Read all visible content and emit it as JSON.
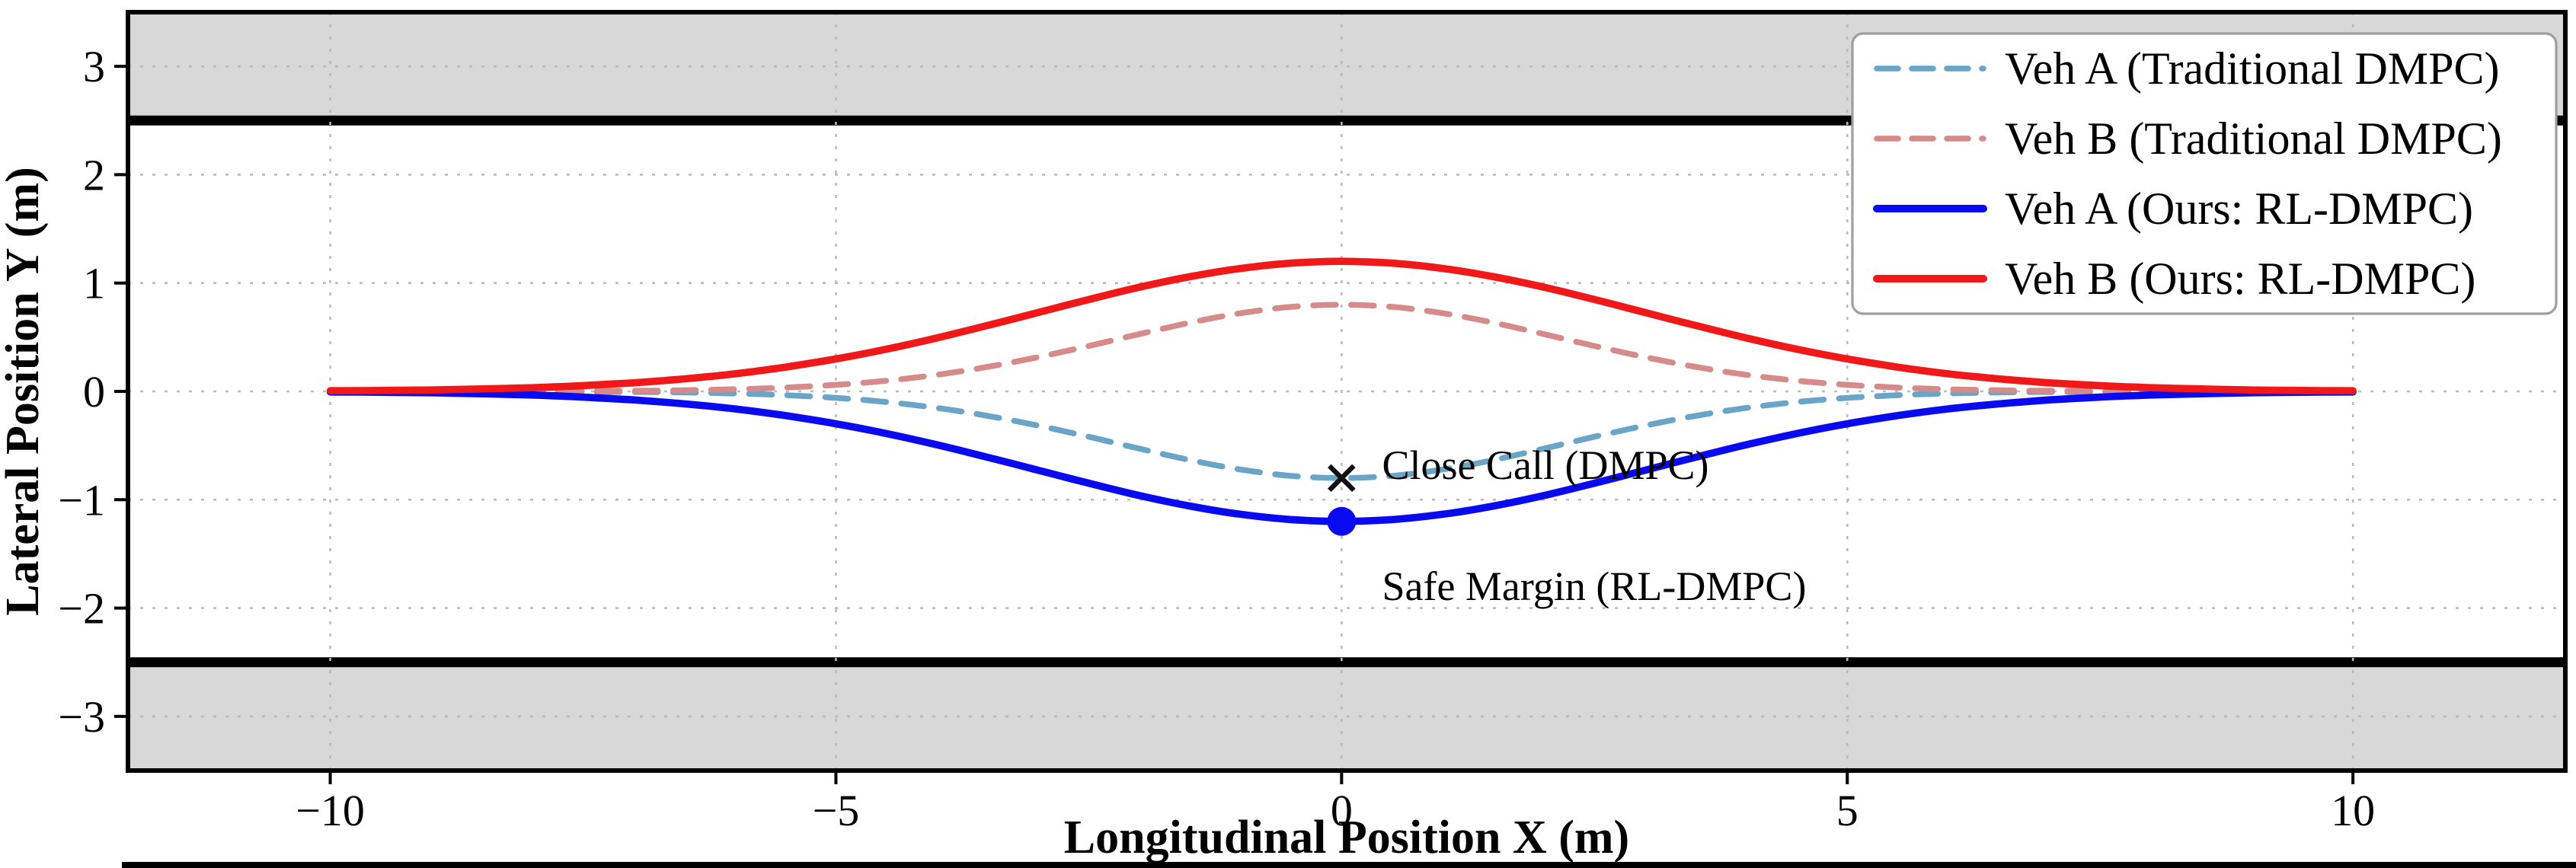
{
  "figure": {
    "background": "#ffffff"
  },
  "chart_data": {
    "type": "line",
    "title": "",
    "xlabel": "Longitudinal Position X (m)",
    "ylabel": "Lateral Position Y (m)",
    "xlim": [
      -12,
      12.1
    ],
    "ylim": [
      -3.5,
      3.5
    ],
    "xticks": [
      -10,
      -5,
      0,
      5,
      10
    ],
    "yticks": [
      -3,
      -2,
      -1,
      0,
      1,
      2,
      3
    ],
    "grid": {
      "style": "dotted",
      "color": "#bbbbbb"
    },
    "legend_position": "upper right",
    "road": {
      "lane_half_width": 2.5,
      "band_color": "#d8d8d8",
      "edge_color": "#000000"
    },
    "x": [
      -10,
      -9.5,
      -9,
      -8.5,
      -8,
      -7.5,
      -7,
      -6.5,
      -6,
      -5.5,
      -5,
      -4.5,
      -4,
      -3.5,
      -3,
      -2.5,
      -2,
      -1.5,
      -1,
      -0.5,
      0,
      0.5,
      1,
      1.5,
      2,
      2.5,
      3,
      3.5,
      4,
      4.5,
      5,
      5.5,
      6,
      6.5,
      7,
      7.5,
      8,
      8.5,
      9,
      9.5,
      10
    ],
    "series": [
      {
        "name": "Veh A (Traditional DMPC)",
        "style": "dashed",
        "color": "#6aa5c8",
        "values": [
          0,
          0,
          0,
          -0.001,
          -0.001,
          -0.003,
          -0.005,
          -0.01,
          -0.019,
          -0.035,
          -0.06,
          -0.099,
          -0.153,
          -0.226,
          -0.316,
          -0.419,
          -0.529,
          -0.634,
          -0.721,
          -0.78,
          -0.8,
          -0.78,
          -0.721,
          -0.634,
          -0.529,
          -0.419,
          -0.316,
          -0.226,
          -0.153,
          -0.099,
          -0.06,
          -0.035,
          -0.019,
          -0.01,
          -0.005,
          -0.003,
          -0.001,
          -0.001,
          0,
          0,
          0
        ]
      },
      {
        "name": "Veh B (Traditional DMPC)",
        "style": "dashed",
        "color": "#d68a8a",
        "values": [
          0,
          0,
          0,
          0.001,
          0.001,
          0.003,
          0.005,
          0.01,
          0.019,
          0.035,
          0.06,
          0.099,
          0.153,
          0.226,
          0.316,
          0.419,
          0.529,
          0.634,
          0.721,
          0.78,
          0.8,
          0.78,
          0.721,
          0.634,
          0.529,
          0.419,
          0.316,
          0.226,
          0.153,
          0.099,
          0.06,
          0.035,
          0.019,
          0.01,
          0.005,
          0.003,
          0.001,
          0.001,
          0,
          0,
          0
        ]
      },
      {
        "name": "Veh A (Ours: RL-DMPC)",
        "style": "solid",
        "color": "#0a0af0",
        "values": [
          -0.005,
          -0.008,
          -0.013,
          -0.022,
          -0.034,
          -0.053,
          -0.079,
          -0.115,
          -0.162,
          -0.224,
          -0.299,
          -0.39,
          -0.493,
          -0.608,
          -0.728,
          -0.848,
          -0.961,
          -1.059,
          -1.135,
          -1.183,
          -1.2,
          -1.183,
          -1.135,
          -1.059,
          -0.961,
          -0.848,
          -0.728,
          -0.608,
          -0.493,
          -0.39,
          -0.299,
          -0.224,
          -0.162,
          -0.115,
          -0.079,
          -0.053,
          -0.034,
          -0.022,
          -0.013,
          -0.008,
          -0.005
        ]
      },
      {
        "name": "Veh B (Ours: RL-DMPC)",
        "style": "solid",
        "color": "#f01818",
        "values": [
          0.005,
          0.008,
          0.013,
          0.022,
          0.034,
          0.053,
          0.079,
          0.115,
          0.162,
          0.224,
          0.299,
          0.39,
          0.493,
          0.608,
          0.728,
          0.848,
          0.961,
          1.059,
          1.135,
          1.183,
          1.2,
          1.183,
          1.135,
          1.059,
          0.961,
          0.848,
          0.728,
          0.608,
          0.493,
          0.39,
          0.299,
          0.224,
          0.162,
          0.115,
          0.079,
          0.053,
          0.034,
          0.022,
          0.013,
          0.008,
          0.005
        ]
      }
    ],
    "annotations": [
      {
        "text": "Close Call (DMPC)",
        "marker": "x",
        "marker_color": "#111111",
        "text_color": "#111111",
        "x": 0,
        "y": -0.8,
        "label_x": 0.4,
        "label_y": -0.68
      },
      {
        "text": "Safe Margin (RL-DMPC)",
        "marker": "circle",
        "marker_color": "#0a0af0",
        "text_color": "#1a1ad6",
        "x": 0,
        "y": -1.2,
        "label_x": 0.4,
        "label_y": -1.8
      }
    ]
  }
}
